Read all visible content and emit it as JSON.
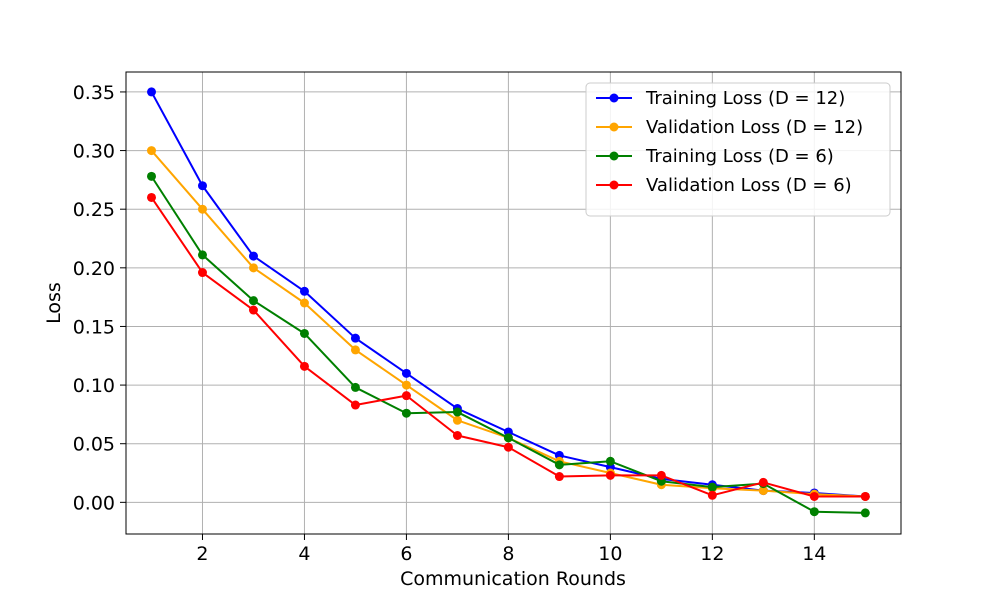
{
  "chart_data": {
    "type": "line",
    "title": "",
    "xlabel": "Communication Rounds",
    "ylabel": "Loss",
    "xlim": [
      0.5,
      15.7
    ],
    "ylim": [
      -0.027,
      0.367
    ],
    "xticks": [
      2,
      4,
      6,
      8,
      10,
      12,
      14
    ],
    "xtick_labels": [
      "2",
      "4",
      "6",
      "8",
      "10",
      "12",
      "14"
    ],
    "yticks": [
      0.0,
      0.05,
      0.1,
      0.15,
      0.2,
      0.25,
      0.3,
      0.35
    ],
    "ytick_labels": [
      "0.00",
      "0.05",
      "0.10",
      "0.15",
      "0.20",
      "0.25",
      "0.30",
      "0.35"
    ],
    "grid": true,
    "legend_position": "top-right",
    "x": [
      1,
      2,
      3,
      4,
      5,
      6,
      7,
      8,
      9,
      10,
      11,
      12,
      13,
      14,
      15
    ],
    "series": [
      {
        "name": "Training Loss (D = 12)",
        "color": "#0000ff",
        "values": [
          0.35,
          0.27,
          0.21,
          0.18,
          0.14,
          0.11,
          0.08,
          0.06,
          0.04,
          0.03,
          0.02,
          0.015,
          0.01,
          0.008,
          0.005
        ]
      },
      {
        "name": "Validation Loss (D = 12)",
        "color": "#ffa500",
        "values": [
          0.3,
          0.25,
          0.2,
          0.17,
          0.13,
          0.1,
          0.07,
          0.055,
          0.035,
          0.025,
          0.015,
          0.012,
          0.01,
          0.007,
          0.005
        ]
      },
      {
        "name": "Training Loss (D = 6)",
        "color": "#008000",
        "values": [
          0.278,
          0.211,
          0.172,
          0.144,
          0.098,
          0.076,
          0.077,
          0.055,
          0.032,
          0.035,
          0.018,
          0.013,
          0.016,
          -0.008,
          -0.009
        ]
      },
      {
        "name": "Validation Loss (D = 6)",
        "color": "#ff0000",
        "values": [
          0.26,
          0.196,
          0.164,
          0.116,
          0.083,
          0.091,
          0.057,
          0.047,
          0.022,
          0.023,
          0.023,
          0.006,
          0.017,
          0.005,
          0.005
        ]
      }
    ]
  }
}
